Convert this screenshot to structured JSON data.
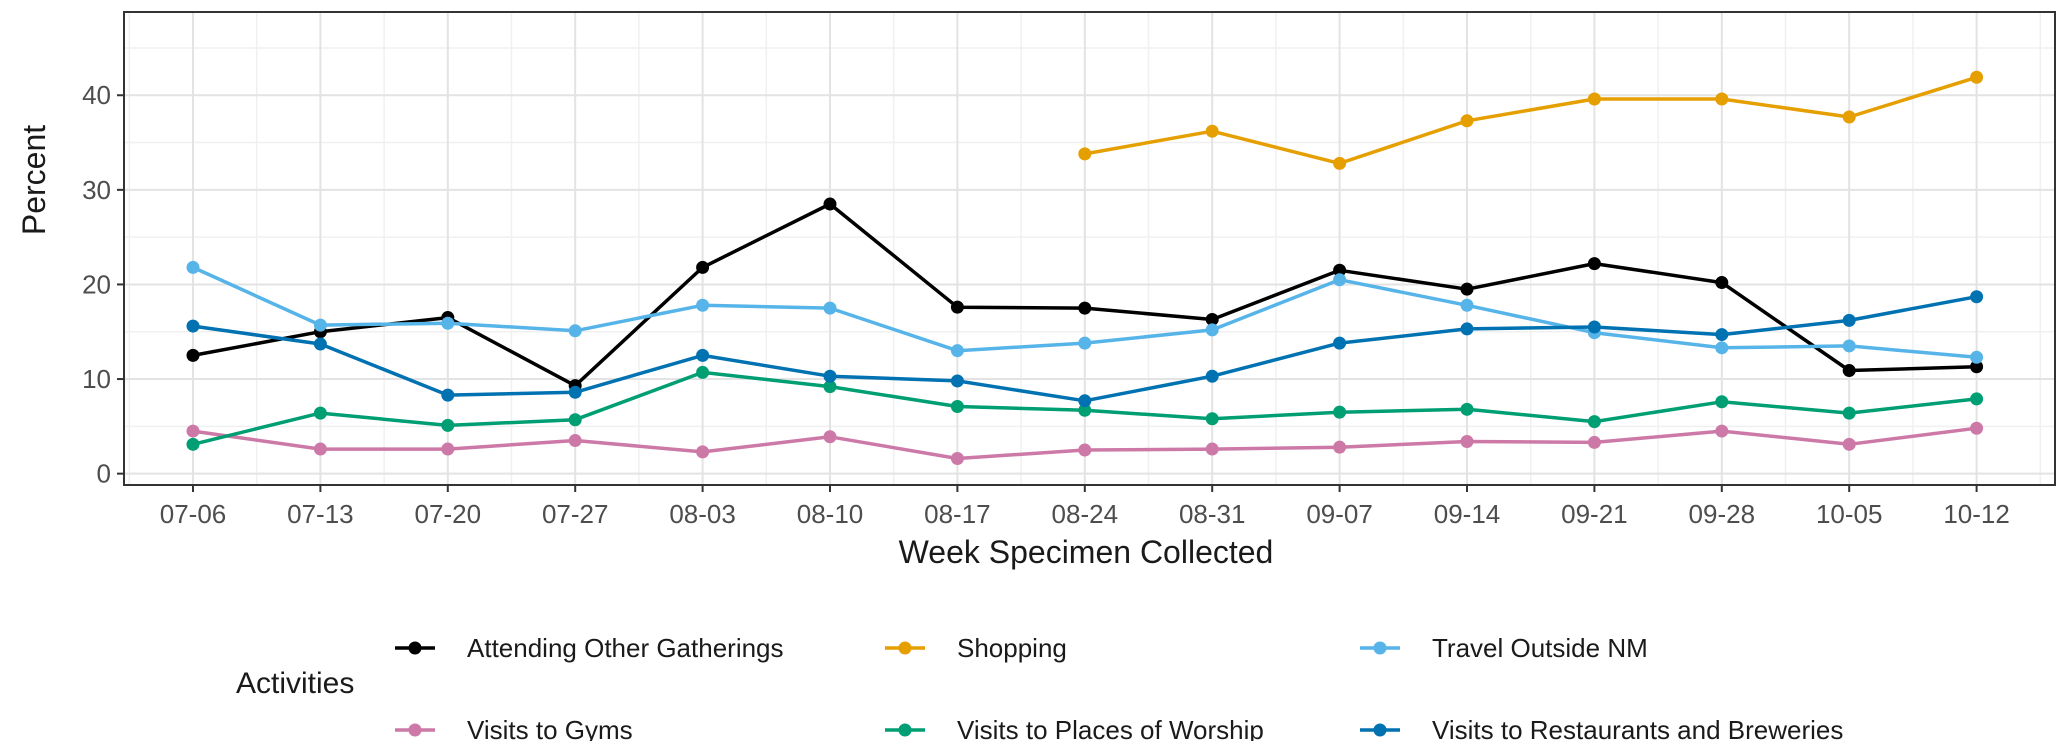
{
  "chart_data": {
    "type": "line",
    "title": "",
    "xlabel": "Week Specimen Collected",
    "ylabel": "Percent",
    "categories": [
      "07-06",
      "07-13",
      "07-20",
      "07-27",
      "08-03",
      "08-10",
      "08-17",
      "08-24",
      "08-31",
      "09-07",
      "09-14",
      "09-21",
      "09-28",
      "10-05",
      "10-12"
    ],
    "y_ticks": [
      0,
      10,
      20,
      30,
      40
    ],
    "ylim": [
      -1.2,
      48.8
    ],
    "grid": true,
    "legend": {
      "title": "Activities",
      "position": "bottom"
    },
    "series": [
      {
        "name": "Attending Other Gatherings",
        "color": "#000000",
        "values": [
          12.5,
          15.0,
          16.5,
          9.3,
          21.8,
          28.5,
          17.6,
          17.5,
          16.3,
          21.5,
          19.5,
          22.2,
          20.2,
          10.9,
          11.3
        ]
      },
      {
        "name": "Shopping",
        "color": "#E69F00",
        "values": [
          null,
          null,
          null,
          null,
          null,
          null,
          null,
          33.8,
          36.2,
          32.8,
          37.3,
          39.6,
          39.6,
          37.7,
          41.9
        ]
      },
      {
        "name": "Travel Outside NM",
        "color": "#56B4E9",
        "values": [
          21.8,
          15.7,
          15.9,
          15.1,
          17.8,
          17.5,
          13.0,
          13.8,
          15.2,
          20.5,
          17.8,
          14.9,
          13.3,
          13.5,
          12.3
        ]
      },
      {
        "name": "Visits to Gyms",
        "color": "#CC79A7",
        "values": [
          4.5,
          2.6,
          2.6,
          3.5,
          2.3,
          3.9,
          1.6,
          2.5,
          2.6,
          2.8,
          3.4,
          3.3,
          4.5,
          3.1,
          4.8
        ]
      },
      {
        "name": "Visits to Places of Worship",
        "color": "#009E73",
        "values": [
          3.1,
          6.4,
          5.1,
          5.7,
          10.7,
          9.2,
          7.1,
          6.7,
          5.8,
          6.5,
          6.8,
          5.5,
          7.6,
          6.4,
          7.9
        ]
      },
      {
        "name": "Visits to Restaurants and Breweries",
        "color": "#0072B2",
        "values": [
          15.6,
          13.7,
          8.3,
          8.6,
          12.5,
          10.3,
          9.8,
          7.7,
          10.3,
          13.8,
          15.3,
          15.5,
          14.7,
          16.2,
          18.7
        ]
      }
    ]
  }
}
